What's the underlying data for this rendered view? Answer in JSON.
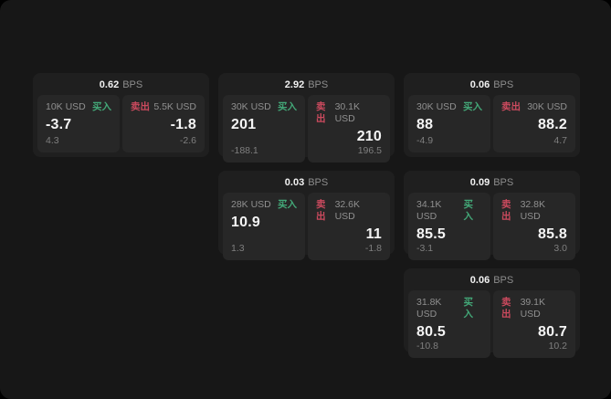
{
  "colors": {
    "buy_green": "#43a878",
    "sell_red": "#cb4a5e",
    "surface": "#171717",
    "card": "#1f1f1f",
    "panel": "#272727"
  },
  "labels": {
    "bps_suffix": "BPS",
    "buy": "买入",
    "sell": "卖出"
  },
  "cards": [
    {
      "bps": "0.62",
      "buy": {
        "amount": "10K USD",
        "value": "-3.7",
        "sub": "4.3"
      },
      "sell": {
        "amount": "5.5K USD",
        "value": "-1.8",
        "sub": "-2.6"
      }
    },
    {
      "bps": "2.92",
      "buy": {
        "amount": "30K USD",
        "value": "201",
        "sub": "-188.1"
      },
      "sell": {
        "amount": "30.1K USD",
        "value": "210",
        "sub": "196.5"
      }
    },
    {
      "bps": "0.06",
      "buy": {
        "amount": "30K USD",
        "value": "88",
        "sub": "-4.9"
      },
      "sell": {
        "amount": "30K USD",
        "value": "88.2",
        "sub": "4.7"
      }
    },
    {
      "bps": "0.03",
      "buy": {
        "amount": "28K USD",
        "value": "10.9",
        "sub": "1.3"
      },
      "sell": {
        "amount": "32.6K USD",
        "value": "11",
        "sub": "-1.8"
      }
    },
    {
      "bps": "0.09",
      "buy": {
        "amount": "34.1K USD",
        "value": "85.5",
        "sub": "-3.1"
      },
      "sell": {
        "amount": "32.8K USD",
        "value": "85.8",
        "sub": "3.0"
      }
    },
    {
      "bps": "0.06",
      "buy": {
        "amount": "31.8K USD",
        "value": "80.5",
        "sub": "-10.8"
      },
      "sell": {
        "amount": "39.1K USD",
        "value": "80.7",
        "sub": "10.2"
      }
    }
  ]
}
